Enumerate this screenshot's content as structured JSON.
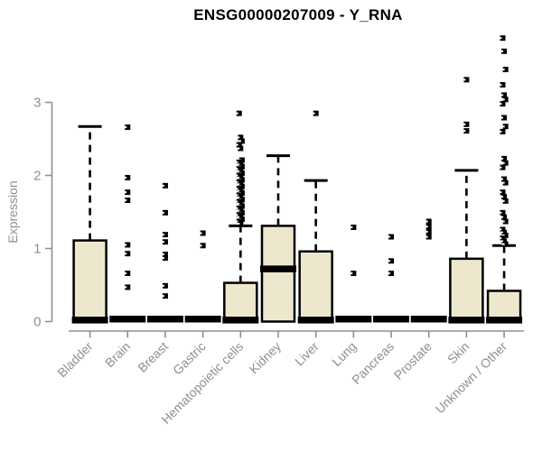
{
  "chart_data": {
    "type": "boxplot",
    "title": "ENSG00000207009 - Y_RNA",
    "ylabel": "Expression",
    "xlabel": "",
    "yticks": [
      0,
      1,
      2,
      3
    ],
    "ylim": [
      0,
      3.95
    ],
    "grid": false,
    "legend": null,
    "colors": {
      "box_fill": "#ede8cd",
      "box_border": "#000000",
      "whisker": "#000000",
      "outlier": "#000000",
      "axis": "#8f8f8f",
      "tick_text": "#8f8f8f",
      "title_text": "#000000",
      "background": "#ffffff"
    },
    "categories": [
      "Bladder",
      "Brain",
      "Breast",
      "Gastric",
      "Hematopoietic cells",
      "Kidney",
      "Liver",
      "Lung",
      "Pancreas",
      "Prostate",
      "Skin",
      "Unknown / Other"
    ],
    "series": [
      {
        "category": "Bladder",
        "q1": 0,
        "median": 0.02,
        "q3": 1.11,
        "whisker_low": 0,
        "whisker_high": 2.67,
        "outliers": []
      },
      {
        "category": "Brain",
        "q1": 0,
        "median": 0,
        "q3": 0,
        "whisker_low": 0,
        "whisker_high": 0,
        "outliers": [
          2.66,
          1.97,
          1.77,
          1.66,
          1.05,
          0.93,
          0.66,
          0.47
        ]
      },
      {
        "category": "Breast",
        "q1": 0,
        "median": 0,
        "q3": 0,
        "whisker_low": 0,
        "whisker_high": 0,
        "outliers": [
          1.86,
          1.49,
          1.19,
          1.09,
          0.92,
          0.87,
          0.49,
          0.35
        ]
      },
      {
        "category": "Gastric",
        "q1": 0,
        "median": 0,
        "q3": 0,
        "whisker_low": 0,
        "whisker_high": 0,
        "outliers": [
          1.21,
          1.04
        ]
      },
      {
        "category": "Hematopoietic cells",
        "q1": 0,
        "median": 0.02,
        "q3": 0.53,
        "whisker_low": 0,
        "whisker_high": 1.31,
        "outliers": [
          2.85,
          2.52,
          2.47,
          2.42,
          2.37,
          2.21,
          2.18,
          2.15,
          2.12,
          2.09,
          2.06,
          2.03,
          2.0,
          1.97,
          1.94,
          1.91,
          1.88,
          1.85,
          1.82,
          1.79,
          1.76,
          1.73,
          1.7,
          1.67,
          1.64,
          1.61,
          1.58,
          1.55,
          1.52,
          1.49,
          1.46,
          1.43,
          1.4,
          1.37,
          1.34
        ]
      },
      {
        "category": "Kidney",
        "q1": 0,
        "median": 0.72,
        "q3": 1.31,
        "whisker_low": 0,
        "whisker_high": 2.27,
        "outliers": []
      },
      {
        "category": "Liver",
        "q1": 0,
        "median": 0.02,
        "q3": 0.96,
        "whisker_low": 0,
        "whisker_high": 1.93,
        "outliers": [
          2.85
        ]
      },
      {
        "category": "Lung",
        "q1": 0,
        "median": 0,
        "q3": 0,
        "whisker_low": 0,
        "whisker_high": 0,
        "outliers": [
          1.29,
          0.66
        ]
      },
      {
        "category": "Pancreas",
        "q1": 0,
        "median": 0,
        "q3": 0,
        "whisker_low": 0,
        "whisker_high": 0,
        "outliers": [
          1.16,
          0.83,
          0.66
        ]
      },
      {
        "category": "Prostate",
        "q1": 0,
        "median": 0,
        "q3": 0,
        "whisker_low": 0,
        "whisker_high": 0,
        "outliers": [
          1.37,
          1.3,
          1.23,
          1.16
        ]
      },
      {
        "category": "Skin",
        "q1": 0,
        "median": 0.02,
        "q3": 0.86,
        "whisker_low": 0,
        "whisker_high": 2.07,
        "outliers": [
          3.31,
          2.7,
          2.61
        ]
      },
      {
        "category": "Unknown / Other",
        "q1": 0,
        "median": 0.02,
        "q3": 0.42,
        "whisker_low": 0,
        "whisker_high": 1.04,
        "outliers": [
          3.88,
          3.7,
          3.45,
          3.24,
          3.1,
          3.04,
          2.98,
          2.79,
          2.67,
          2.6,
          2.23,
          2.17,
          2.11,
          1.95,
          1.9,
          1.77,
          1.71,
          1.65,
          1.49,
          1.43,
          1.37,
          1.26,
          1.22,
          1.18,
          1.14,
          1.1,
          1.06
        ]
      }
    ]
  }
}
